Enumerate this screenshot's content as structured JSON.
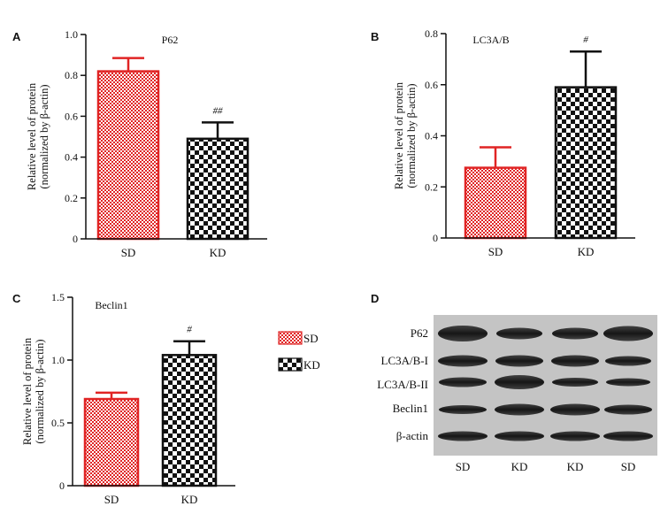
{
  "panel_labels": [
    "A",
    "B",
    "C",
    "D"
  ],
  "colors": {
    "sd": "#e02424",
    "kd": "#111111",
    "axis": "#111111"
  },
  "chart_data": [
    {
      "type": "bar",
      "title": "P62",
      "ylabel": [
        "Relative level of protein",
        "(normalized by β-actin)"
      ],
      "categories": [
        "SD",
        "KD"
      ],
      "values": [
        0.82,
        0.49
      ],
      "errors": [
        0.065,
        0.08
      ],
      "annotations": [
        "",
        "##"
      ],
      "yticks": [
        "0",
        "0.2",
        "0.4",
        "0.6",
        "0.8",
        "1.0"
      ],
      "tickvals": [
        0,
        0.2,
        0.4,
        0.6,
        0.8,
        1.0
      ],
      "ylim": [
        0,
        1.0
      ]
    },
    {
      "type": "bar",
      "title": "LC3A/B",
      "ylabel": [
        "Relative level of protein",
        "(normalized by β-actin)"
      ],
      "categories": [
        "SD",
        "KD"
      ],
      "values": [
        0.275,
        0.59
      ],
      "errors": [
        0.08,
        0.14
      ],
      "annotations": [
        "",
        "#"
      ],
      "yticks": [
        "0",
        "0.2",
        "0.4",
        "0.6",
        "0.8"
      ],
      "tickvals": [
        0,
        0.2,
        0.4,
        0.6,
        0.8
      ],
      "ylim": [
        0,
        0.8
      ]
    },
    {
      "type": "bar",
      "title": "Beclin1",
      "ylabel": [
        "Relative level of protein",
        "(normalized by β-actin)"
      ],
      "categories": [
        "SD",
        "KD"
      ],
      "values": [
        0.69,
        1.04
      ],
      "errors": [
        0.05,
        0.11
      ],
      "annotations": [
        "",
        "#"
      ],
      "yticks": [
        "0",
        "0.5",
        "1.0",
        "1.5"
      ],
      "tickvals": [
        0,
        0.5,
        1.0,
        1.5
      ],
      "ylim": [
        0,
        1.5
      ],
      "legend": [
        {
          "name": "SD"
        },
        {
          "name": "KD"
        }
      ]
    }
  ],
  "western_blot": {
    "rows": [
      "P62",
      "LC3A/B-I",
      "LC3A/B-II",
      "Beclin1",
      "β-actin"
    ],
    "lanes": [
      "SD",
      "KD",
      "KD",
      "SD"
    ]
  }
}
